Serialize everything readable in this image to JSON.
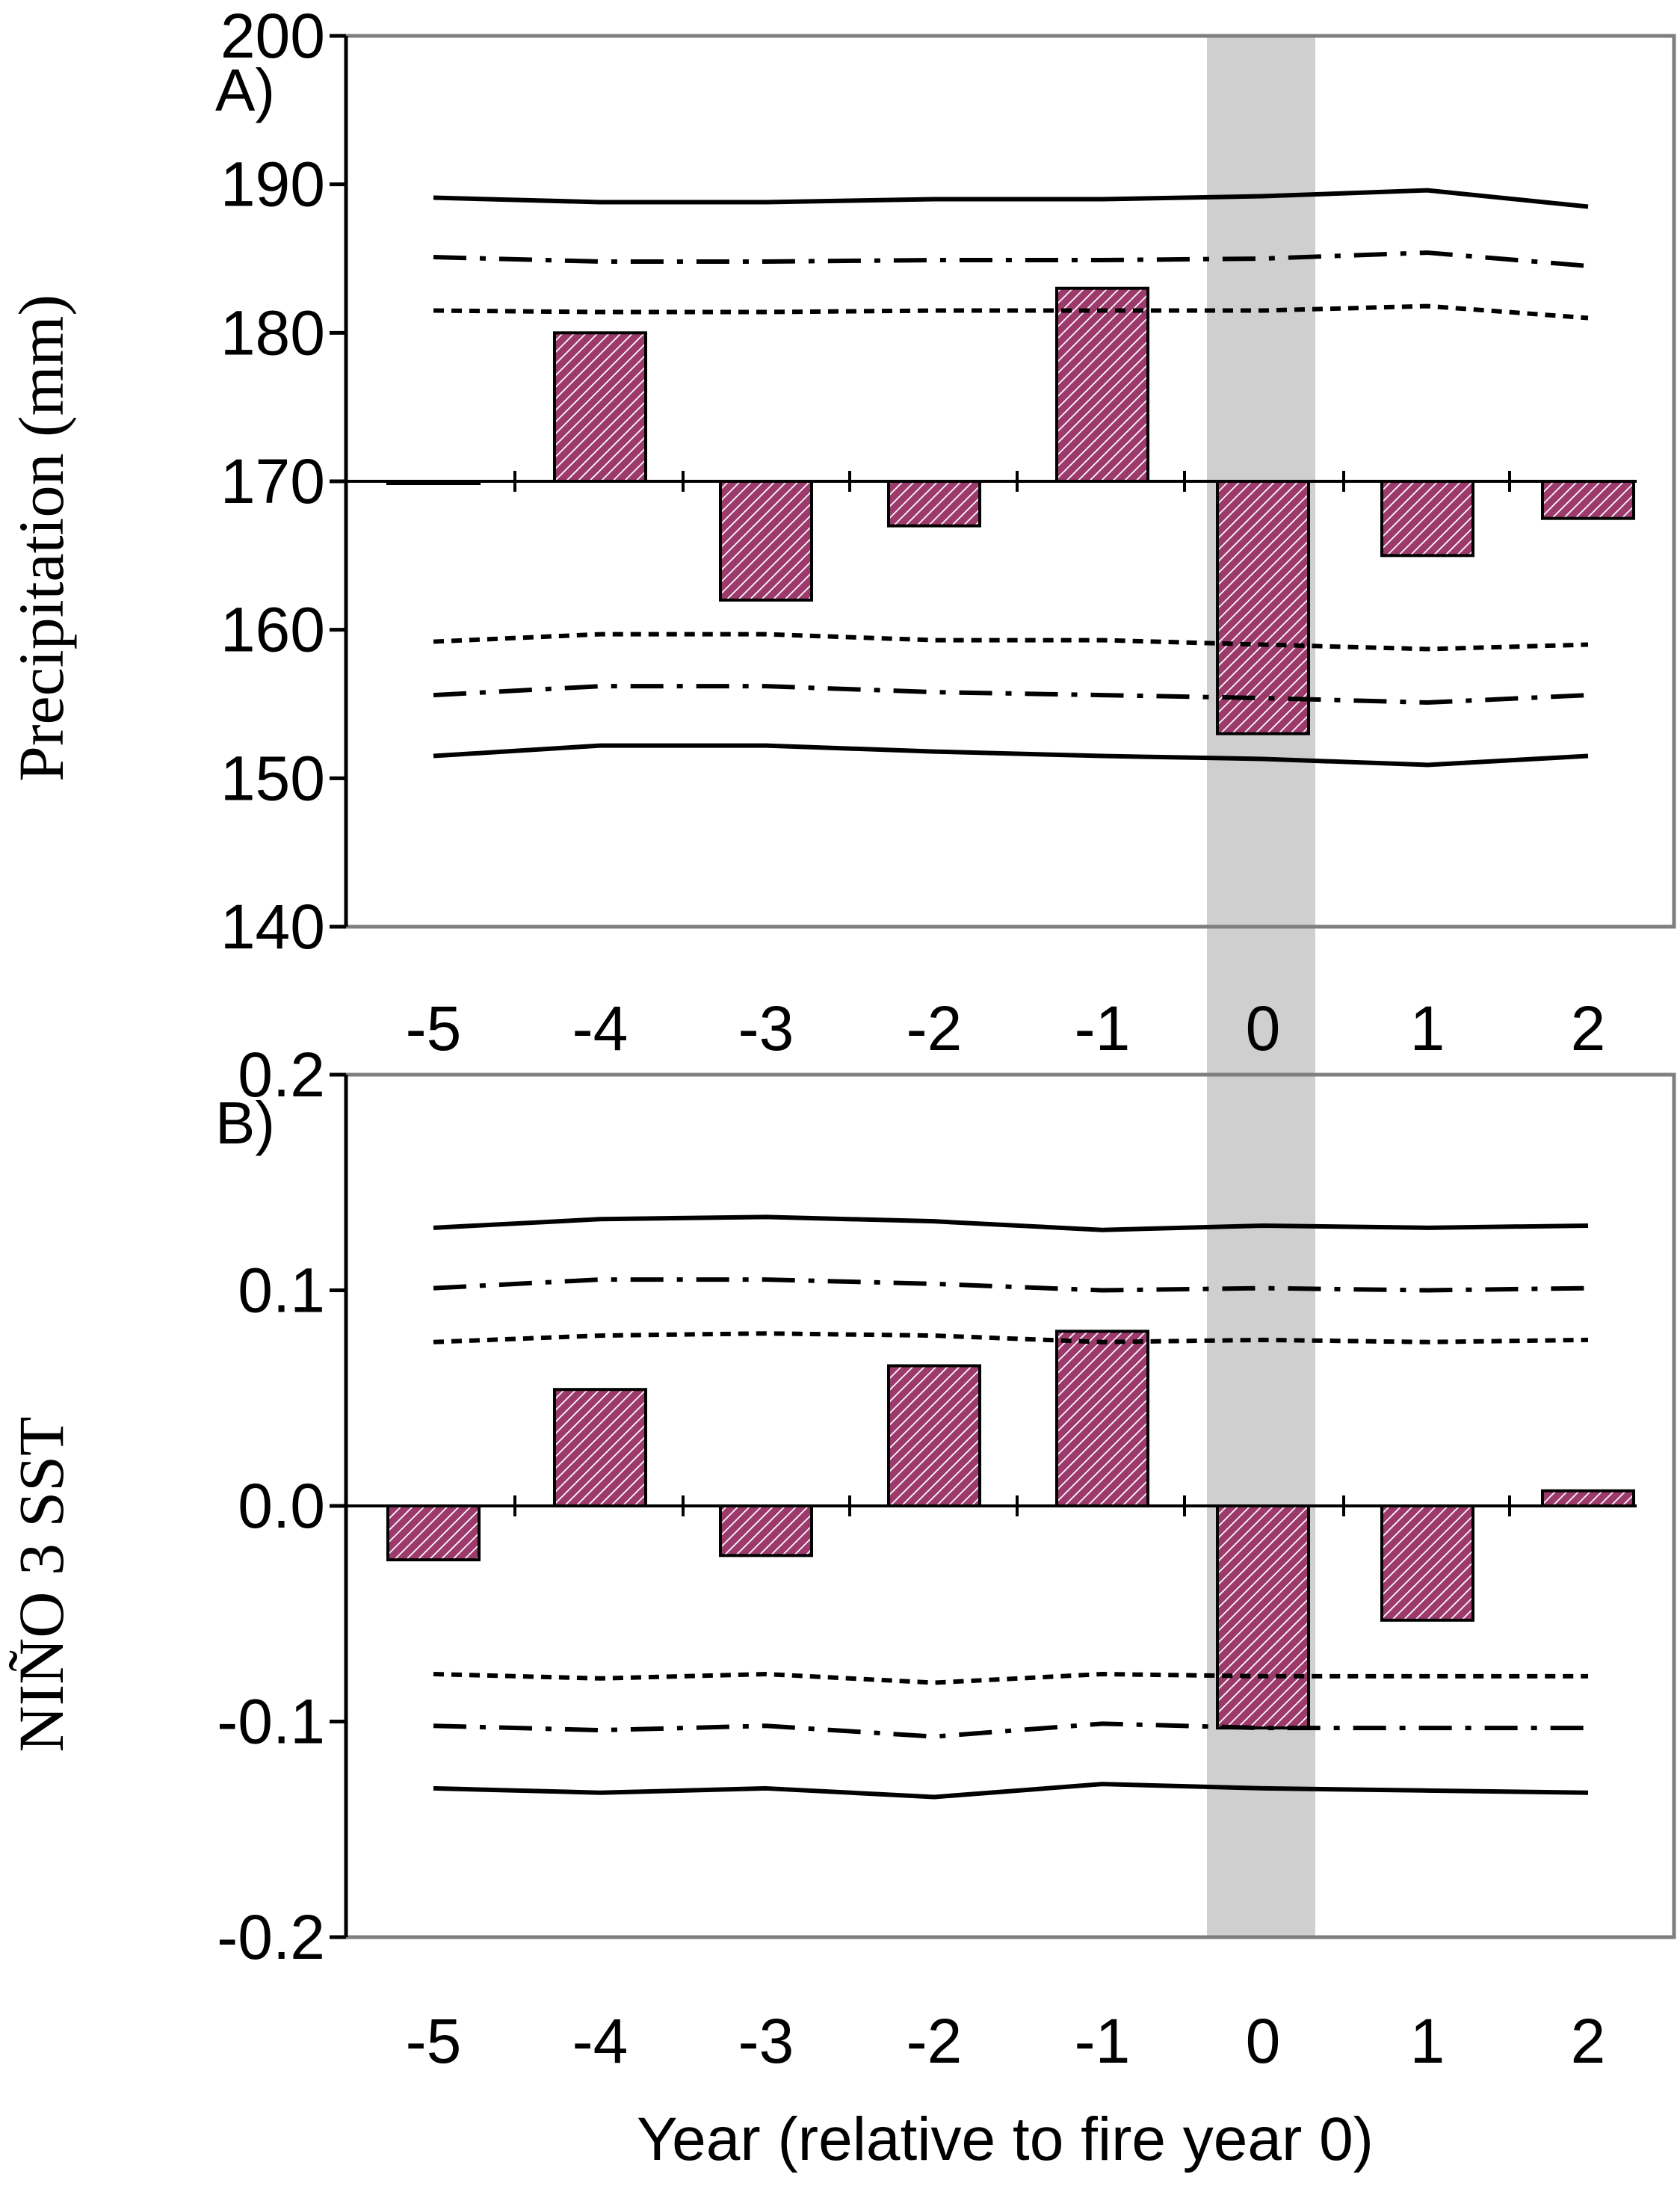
{
  "figure": {
    "xlabel": "Year (relative to fire year 0)",
    "highlight_category": "0",
    "colors": {
      "bar_fill": "#9c3a6c",
      "bar_hatch": "#ffffff",
      "highlight": "#cfcfcf",
      "frame": "#7f7f7f",
      "line": "#000000"
    }
  },
  "chart_data": [
    {
      "type": "bar",
      "panel_label": "A)",
      "ylabel": "Precipitation (mm)",
      "categories": [
        "-5",
        "-4",
        "-3",
        "-2",
        "-1",
        "0",
        "1",
        "2"
      ],
      "ylim": [
        140,
        200
      ],
      "yticks": [
        140,
        150,
        160,
        170,
        180,
        190,
        200
      ],
      "ytick_labels": [
        "140",
        "150",
        "160",
        "170",
        "180",
        "190",
        "200"
      ],
      "baseline": 170,
      "values": [
        170,
        180,
        162,
        167,
        183,
        153,
        165,
        167.5
      ],
      "series": [
        {
          "name": "upper solid",
          "style": "solid",
          "values": [
            189.1,
            188.8,
            188.8,
            189.0,
            189.0,
            189.2,
            189.6,
            188.5
          ]
        },
        {
          "name": "upper dash-dot",
          "style": "dashdot",
          "values": [
            185.1,
            184.8,
            184.8,
            184.9,
            184.9,
            185.0,
            185.4,
            184.5
          ]
        },
        {
          "name": "upper dotted",
          "style": "dotted",
          "values": [
            181.5,
            181.4,
            181.4,
            181.5,
            181.5,
            181.5,
            181.8,
            181.0
          ]
        },
        {
          "name": "lower dotted",
          "style": "dotted",
          "values": [
            159.2,
            159.7,
            159.7,
            159.3,
            159.3,
            159.0,
            158.7,
            159.0
          ]
        },
        {
          "name": "lower dash-dot",
          "style": "dashdot",
          "values": [
            155.6,
            156.2,
            156.2,
            155.8,
            155.6,
            155.4,
            155.1,
            155.6
          ]
        },
        {
          "name": "lower solid",
          "style": "solid",
          "values": [
            151.5,
            152.2,
            152.2,
            151.8,
            151.5,
            151.3,
            150.9,
            151.5
          ]
        }
      ]
    },
    {
      "type": "bar",
      "panel_label": "B)",
      "ylabel": "NIÑO 3 SST",
      "categories": [
        "-5",
        "-4",
        "-3",
        "-2",
        "-1",
        "0",
        "1",
        "2"
      ],
      "ylim": [
        -0.2,
        0.2
      ],
      "yticks": [
        -0.2,
        -0.1,
        0.0,
        0.1,
        0.2
      ],
      "ytick_labels": [
        "-0.2",
        "-0.1",
        "0.0",
        "0.1",
        "0.2"
      ],
      "baseline": 0,
      "values": [
        -0.025,
        0.054,
        -0.023,
        0.065,
        0.081,
        -0.103,
        -0.053,
        0.007
      ],
      "series": [
        {
          "name": "upper solid",
          "style": "solid",
          "values": [
            0.129,
            0.133,
            0.134,
            0.132,
            0.128,
            0.13,
            0.129,
            0.13
          ]
        },
        {
          "name": "upper dash-dot",
          "style": "dashdot",
          "values": [
            0.101,
            0.105,
            0.105,
            0.103,
            0.1,
            0.101,
            0.1,
            0.101
          ]
        },
        {
          "name": "upper dotted",
          "style": "dotted",
          "values": [
            0.076,
            0.079,
            0.08,
            0.079,
            0.076,
            0.077,
            0.076,
            0.077
          ]
        },
        {
          "name": "lower dotted",
          "style": "dotted",
          "values": [
            -0.078,
            -0.08,
            -0.078,
            -0.082,
            -0.078,
            -0.079,
            -0.079,
            -0.079
          ]
        },
        {
          "name": "lower dash-dot",
          "style": "dashdot",
          "values": [
            -0.102,
            -0.104,
            -0.102,
            -0.107,
            -0.101,
            -0.103,
            -0.103,
            -0.103
          ]
        },
        {
          "name": "lower solid",
          "style": "solid",
          "values": [
            -0.131,
            -0.133,
            -0.131,
            -0.135,
            -0.129,
            -0.131,
            -0.132,
            -0.133
          ]
        }
      ]
    }
  ]
}
